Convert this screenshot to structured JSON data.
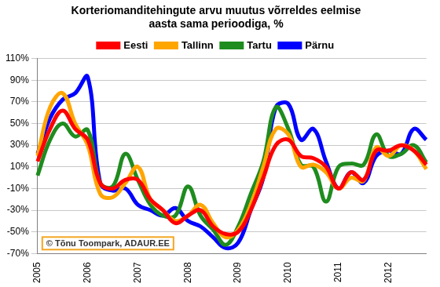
{
  "chart_data": {
    "type": "line",
    "title": [
      "Korteriomanditehingute arvu muutus võrreldes eelmise",
      "aasta sama perioodiga, %"
    ],
    "annotation": "© Tõnu Toompark, ADAUR.EE",
    "categories": [
      "2005",
      null,
      null,
      null,
      "2006",
      null,
      null,
      null,
      "2007",
      null,
      null,
      null,
      "2008",
      null,
      null,
      null,
      "2009",
      null,
      null,
      null,
      "2010",
      null,
      null,
      null,
      "2011",
      null,
      null,
      null,
      "2012",
      null,
      null,
      null
    ],
    "series": [
      {
        "name": "Eesti",
        "color": "#ff0000",
        "values": [
          15,
          45,
          62,
          45,
          35,
          -5,
          -10,
          -2,
          -2,
          -20,
          -30,
          -42,
          -35,
          -30,
          -45,
          -52,
          -50,
          -30,
          0,
          30,
          35,
          20,
          18,
          10,
          -10,
          5,
          -2,
          25,
          25,
          30,
          25,
          12
        ]
      },
      {
        "name": "Tallinn",
        "color": "#ffa500",
        "values": [
          20,
          65,
          78,
          50,
          30,
          -15,
          -18,
          -5,
          10,
          -20,
          -30,
          -40,
          -35,
          -25,
          -42,
          -55,
          -48,
          -25,
          10,
          45,
          40,
          10,
          12,
          5,
          -10,
          0,
          -3,
          28,
          20,
          30,
          25,
          8
        ]
      },
      {
        "name": "Tartu",
        "color": "#1e8c1e",
        "values": [
          2,
          35,
          50,
          38,
          44,
          -5,
          -8,
          22,
          -2,
          -25,
          -35,
          -35,
          -8,
          -35,
          -48,
          -62,
          -45,
          -15,
          15,
          65,
          45,
          12,
          10,
          -22,
          10,
          13,
          12,
          40,
          20,
          22,
          30,
          14
        ]
      },
      {
        "name": "Pärnu",
        "color": "#0000ff",
        "values": [
          22,
          55,
          72,
          78,
          93,
          -5,
          -12,
          -10,
          -25,
          -30,
          -35,
          -28,
          -40,
          -45,
          -55,
          -65,
          -60,
          -30,
          0,
          65,
          68,
          35,
          45,
          15,
          -10,
          5,
          -5,
          20,
          25,
          22,
          45,
          35
        ]
      }
    ],
    "ylim": [
      -70,
      110
    ],
    "yticks": [
      {
        "value": -70,
        "label": "-70%"
      },
      {
        "value": -50,
        "label": "-50%"
      },
      {
        "value": -30,
        "label": "-30%"
      },
      {
        "value": -10,
        "label": "-10%"
      },
      {
        "value": 10,
        "label": "10%"
      },
      {
        "value": 30,
        "label": "30%"
      },
      {
        "value": 50,
        "label": "50%"
      },
      {
        "value": 70,
        "label": "70%"
      },
      {
        "value": 90,
        "label": "90%"
      },
      {
        "value": 110,
        "label": "110%"
      }
    ],
    "grid": true,
    "legend": "top"
  }
}
